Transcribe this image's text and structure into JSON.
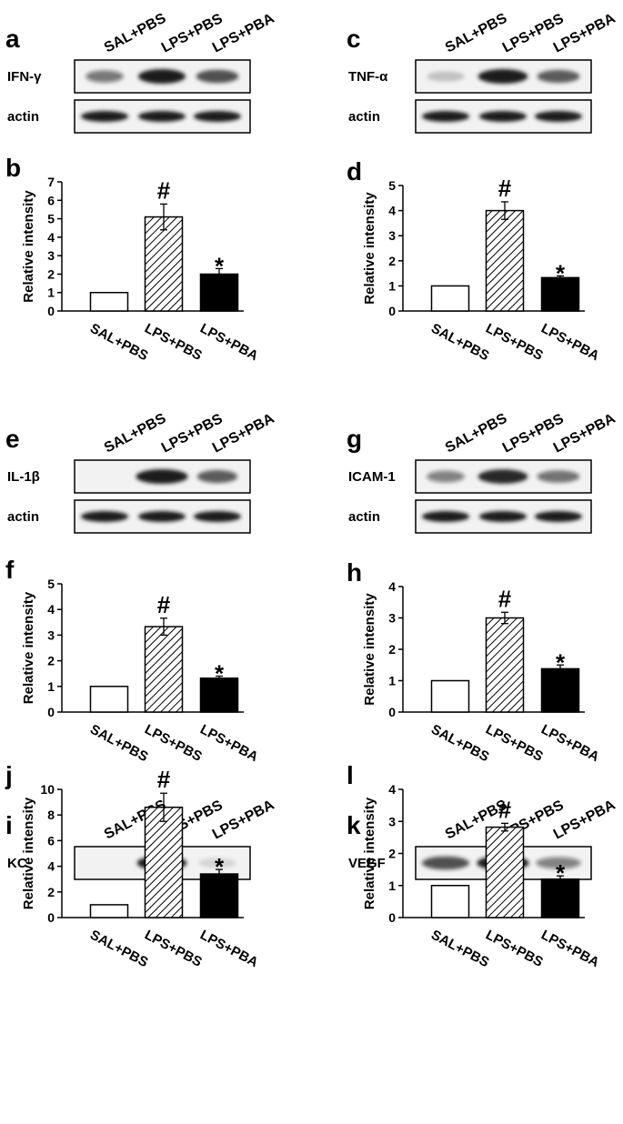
{
  "charts": [
    {
      "letter": "b",
      "blot_letter": "a",
      "blots": [
        "IFN-γ",
        "actin"
      ],
      "lanes": [
        "SAL+PBS",
        "LPS+PBS",
        "LPS+PBA"
      ]
    },
    {
      "letter": "d",
      "blot_letter": "c",
      "blots": [
        "TNF-α",
        "actin"
      ],
      "lanes": [
        "SAL+PBS",
        "LPS+PBS",
        "LPS+PBA"
      ]
    },
    {
      "letter": "f",
      "blot_letter": "e",
      "blots": [
        "IL-1β",
        "actin"
      ],
      "lanes": [
        "SAL+PBS",
        "LPS+PBS",
        "LPS+PBA"
      ]
    },
    {
      "letter": "h",
      "blot_letter": "g",
      "blots": [
        "ICAM-1",
        "actin"
      ],
      "lanes": [
        "SAL+PBS",
        "LPS+PBS",
        "LPS+PBA"
      ]
    },
    {
      "letter": "j",
      "blot_letter": "i",
      "blots": [
        "KC"
      ],
      "lanes": [
        "SAL+PBS",
        "LPS+PBS",
        "LPS+PBA"
      ]
    },
    {
      "letter": "l",
      "blot_letter": "k",
      "blots": [
        "VEGF"
      ],
      "lanes": [
        "SAL+PBS",
        "LPS+PBS",
        "LPS+PBA"
      ]
    }
  ],
  "chart_data": [
    {
      "type": "bar",
      "panel": "b",
      "categories": [
        "SAL+PBS",
        "LPS+PBS",
        "LPS+PBA"
      ],
      "values": [
        1,
        5.1,
        2.0
      ],
      "errors": [
        0,
        0.7,
        0.3
      ],
      "bar_fill": [
        "white",
        "hatched",
        "black"
      ],
      "significance": [
        "",
        "#",
        "*"
      ],
      "ylabel": "Relative intensity",
      "ylim": [
        0,
        7
      ],
      "yticks": [
        0,
        1,
        2,
        3,
        4,
        5,
        6,
        7
      ]
    },
    {
      "type": "bar",
      "panel": "d",
      "categories": [
        "SAL+PBS",
        "LPS+PBS",
        "LPS+PBA"
      ],
      "values": [
        1,
        4.0,
        1.33
      ],
      "errors": [
        0,
        0.35,
        0.07
      ],
      "bar_fill": [
        "white",
        "hatched",
        "black"
      ],
      "significance": [
        "",
        "#",
        "*"
      ],
      "ylabel": "Relative intensity",
      "ylim": [
        0,
        5
      ],
      "yticks": [
        0,
        1,
        2,
        3,
        4,
        5
      ]
    },
    {
      "type": "bar",
      "panel": "f",
      "categories": [
        "SAL+PBS",
        "LPS+PBS",
        "LPS+PBA"
      ],
      "values": [
        1,
        3.33,
        1.32
      ],
      "errors": [
        0,
        0.33,
        0.08
      ],
      "bar_fill": [
        "white",
        "hatched",
        "black"
      ],
      "significance": [
        "",
        "#",
        "*"
      ],
      "ylabel": "Relative intensity",
      "ylim": [
        0,
        5
      ],
      "yticks": [
        0,
        1,
        2,
        3,
        4,
        5
      ]
    },
    {
      "type": "bar",
      "panel": "h",
      "categories": [
        "SAL+PBS",
        "LPS+PBS",
        "LPS+PBA"
      ],
      "values": [
        1,
        3.0,
        1.38
      ],
      "errors": [
        0,
        0.18,
        0.12
      ],
      "bar_fill": [
        "white",
        "hatched",
        "black"
      ],
      "significance": [
        "",
        "#",
        "*"
      ],
      "ylabel": "Relative intensity",
      "ylim": [
        0,
        4
      ],
      "yticks": [
        0,
        1,
        2,
        3,
        4
      ]
    },
    {
      "type": "bar",
      "panel": "j",
      "categories": [
        "SAL+PBS",
        "LPS+PBS",
        "LPS+PBA"
      ],
      "values": [
        1,
        8.6,
        3.4
      ],
      "errors": [
        0,
        1.1,
        0.35
      ],
      "bar_fill": [
        "white",
        "hatched",
        "black"
      ],
      "significance": [
        "",
        "#",
        "*"
      ],
      "ylabel": "Relative intensity",
      "ylim": [
        0,
        10
      ],
      "yticks": [
        0,
        2,
        4,
        6,
        8,
        10
      ]
    },
    {
      "type": "bar",
      "panel": "l",
      "categories": [
        "SAL+PBS",
        "LPS+PBS",
        "LPS+PBA"
      ],
      "values": [
        1,
        2.82,
        1.2
      ],
      "errors": [
        0,
        0.12,
        0.1
      ],
      "bar_fill": [
        "white",
        "hatched",
        "black"
      ],
      "significance": [
        "",
        "#",
        "*"
      ],
      "ylabel": "Relative intensity",
      "ylim": [
        0,
        4
      ],
      "yticks": [
        0,
        1,
        2,
        3,
        4
      ]
    }
  ],
  "colors": {
    "ink": "#000000",
    "background": "#ffffff",
    "band": "#1a1a1a",
    "blot_bg": "#f2f2f2"
  }
}
